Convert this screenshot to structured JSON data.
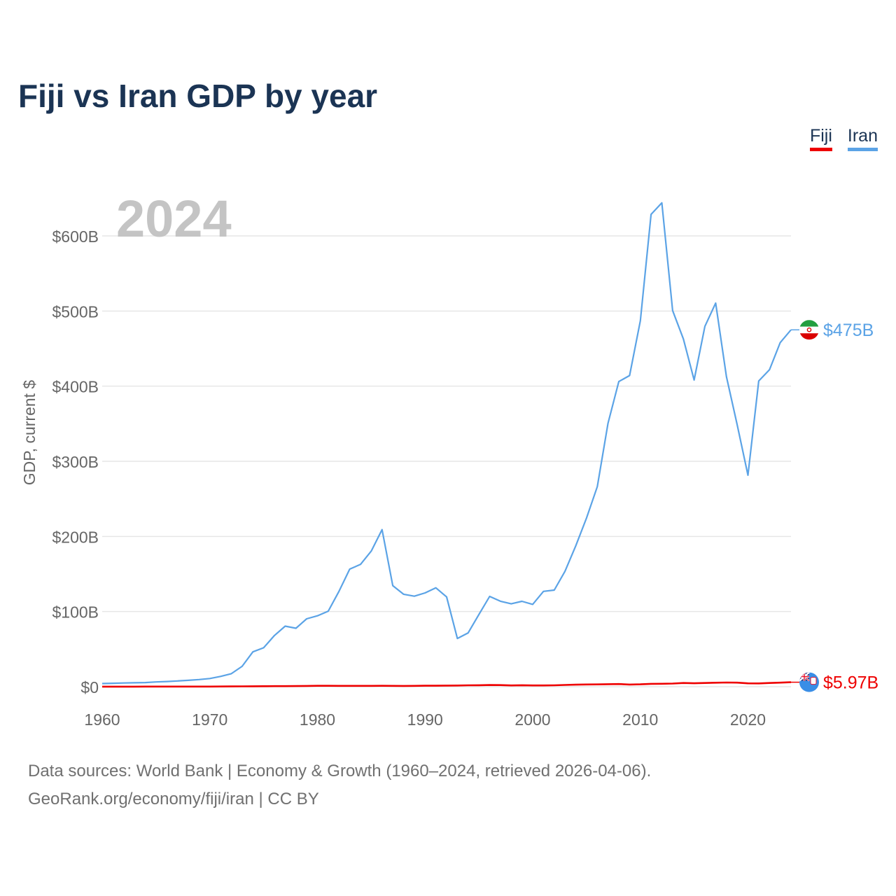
{
  "colors": {
    "title": "#1b3454",
    "fiji": "#ee0000",
    "iran": "#5ba3e6",
    "grid": "#e6e6e6",
    "axis_text": "#666666",
    "year_stamp": "#c4c4c4",
    "source_text": "#707070"
  },
  "chart_data": {
    "type": "line",
    "title": "Fiji vs Iran GDP by year",
    "ylabel": "GDP, current $",
    "xlabel": "",
    "year_stamp": "2024",
    "xlim": [
      1960,
      2024
    ],
    "ylim": [
      0,
      650
    ],
    "y_unit": "billion USD",
    "x_ticks": [
      1960,
      1970,
      1980,
      1990,
      2000,
      2010,
      2020
    ],
    "y_ticks": [
      0,
      100,
      200,
      300,
      400,
      500,
      600
    ],
    "y_tick_labels": [
      "$0",
      "$100B",
      "$200B",
      "$300B",
      "$400B",
      "$500B",
      "$600B"
    ],
    "grid": true,
    "legend_position": "top-right",
    "legend": [
      "Fiji",
      "Iran"
    ],
    "x": [
      1960,
      1961,
      1962,
      1963,
      1964,
      1965,
      1966,
      1967,
      1968,
      1969,
      1970,
      1971,
      1972,
      1973,
      1974,
      1975,
      1976,
      1977,
      1978,
      1979,
      1980,
      1981,
      1982,
      1983,
      1984,
      1985,
      1986,
      1987,
      1988,
      1989,
      1990,
      1991,
      1992,
      1993,
      1994,
      1995,
      1996,
      1997,
      1998,
      1999,
      2000,
      2001,
      2002,
      2003,
      2004,
      2005,
      2006,
      2007,
      2008,
      2009,
      2010,
      2011,
      2012,
      2013,
      2014,
      2015,
      2016,
      2017,
      2018,
      2019,
      2020,
      2021,
      2022,
      2023,
      2024
    ],
    "series": [
      {
        "name": "Fiji",
        "end_label": "$5.97B",
        "values": [
          0.11,
          0.12,
          0.12,
          0.13,
          0.14,
          0.15,
          0.15,
          0.16,
          0.17,
          0.2,
          0.22,
          0.26,
          0.33,
          0.45,
          0.55,
          0.68,
          0.7,
          0.75,
          0.85,
          1.0,
          1.19,
          1.2,
          1.15,
          1.1,
          1.15,
          1.1,
          1.25,
          1.1,
          1.05,
          1.1,
          1.3,
          1.35,
          1.5,
          1.6,
          1.85,
          2.0,
          2.2,
          2.1,
          1.7,
          1.95,
          1.7,
          1.65,
          1.85,
          2.3,
          2.7,
          3.0,
          3.1,
          3.4,
          3.5,
          2.9,
          3.2,
          3.8,
          3.95,
          4.2,
          4.9,
          4.6,
          4.9,
          5.35,
          5.55,
          5.45,
          4.45,
          4.35,
          4.95,
          5.45,
          5.97
        ]
      },
      {
        "name": "Iran",
        "end_label": "$475B",
        "values": [
          4.2,
          4.6,
          4.9,
          5.2,
          5.5,
          6.3,
          6.9,
          7.6,
          8.5,
          9.5,
          10.9,
          13.7,
          17.3,
          27.1,
          46.4,
          51.8,
          68.1,
          80.6,
          77.8,
          90.4,
          94.4,
          100.5,
          127,
          156.5,
          162.8,
          180.6,
          209.1,
          134.5,
          123.1,
          120.5,
          124.8,
          131.6,
          119.5,
          64.2,
          71.6,
          96.1,
          120.2,
          113.8,
          110.3,
          113.7,
          109.6,
          126.9,
          128.6,
          153.5,
          187.5,
          224.5,
          266.3,
          350.7,
          406.1,
          414.1,
          487.1,
          628.6,
          644,
          500.6,
          462.8,
          408.2,
          479.6,
          510.6,
          412.5,
          348.7,
          281.5,
          407,
          422,
          458,
          475
        ]
      }
    ]
  },
  "source": {
    "line1": "Data sources: World Bank | Economy & Growth (1960–2024, retrieved 2026-04-06).",
    "line2": "GeoRank.org/economy/fiji/iran | CC BY"
  }
}
